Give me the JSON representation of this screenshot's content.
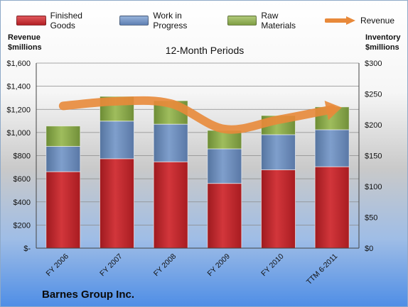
{
  "legend": {
    "finished": "Finished Goods",
    "wip": "Work in Progress",
    "raw": "Raw Materials",
    "revenue": "Revenue"
  },
  "labels": {
    "left_axis_title_1": "Revenue",
    "left_axis_title_2": "$millions",
    "right_axis_title_1": "Inventory",
    "right_axis_title_2": "$millions",
    "chart_title": "12-Month Periods",
    "company": "Barnes Group Inc."
  },
  "colors": {
    "finished": "#c0282d",
    "wip": "#6e8fbf",
    "raw": "#8fae4f",
    "revenue": "#e8893a"
  },
  "chart_data": {
    "type": "bar",
    "stacked": true,
    "title": "12-Month Periods",
    "categories": [
      "FY 2006",
      "FY 2007",
      "FY 2008",
      "FY 2009",
      "FY 2010",
      "TTM 6-2011"
    ],
    "y_left": {
      "label": "Revenue $millions",
      "ylim": [
        0,
        1600
      ],
      "ticks": [
        0,
        200,
        400,
        600,
        800,
        1000,
        1200,
        1400,
        1600
      ],
      "tick_labels": [
        "$-",
        "$200",
        "$400",
        "$600",
        "$800",
        "$1,000",
        "$1,200",
        "$1,400",
        "$1,600"
      ]
    },
    "y_right": {
      "label": "Inventory $millions",
      "ylim": [
        0,
        300
      ],
      "ticks": [
        0,
        50,
        100,
        150,
        200,
        250,
        300
      ],
      "tick_labels": [
        "$0",
        "$50",
        "$100",
        "$150",
        "$200",
        "$250",
        "$300"
      ]
    },
    "series": [
      {
        "name": "Finished Goods",
        "axis": "right",
        "values": [
          124,
          145,
          140,
          105,
          127,
          132
        ]
      },
      {
        "name": "Work in Progress",
        "axis": "right",
        "values": [
          41,
          61,
          61,
          56,
          57,
          60
        ]
      },
      {
        "name": "Raw Materials",
        "axis": "right",
        "values": [
          33,
          40,
          38,
          30,
          31,
          37
        ]
      },
      {
        "name": "Revenue",
        "axis": "left",
        "type": "line",
        "values": [
          1230,
          1270,
          1250,
          1030,
          1110,
          1200
        ]
      }
    ],
    "grid": true,
    "legend_position": "top"
  }
}
